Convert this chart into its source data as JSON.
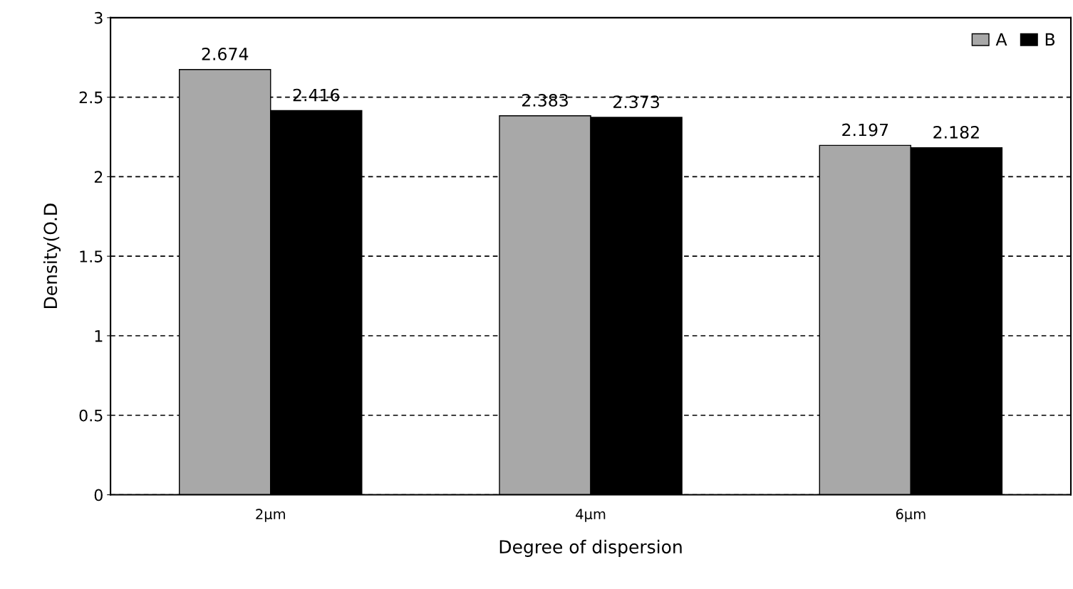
{
  "chart_data": {
    "type": "bar",
    "xlabel": "Degree of dispersion",
    "ylabel": "Density(O.D",
    "categories": [
      "2μm",
      "4μm",
      "6μm"
    ],
    "series": [
      {
        "name": "A",
        "color": "#a8a8a8",
        "values": [
          2.674,
          2.383,
          2.197
        ]
      },
      {
        "name": "B",
        "color": "#000000",
        "values": [
          2.416,
          2.373,
          2.182
        ]
      }
    ],
    "ylim": [
      0,
      3
    ],
    "yticks": [
      0,
      0.5,
      1,
      1.5,
      2,
      2.5,
      3
    ],
    "grid": "y",
    "legend": "top right",
    "data_labels": true
  }
}
